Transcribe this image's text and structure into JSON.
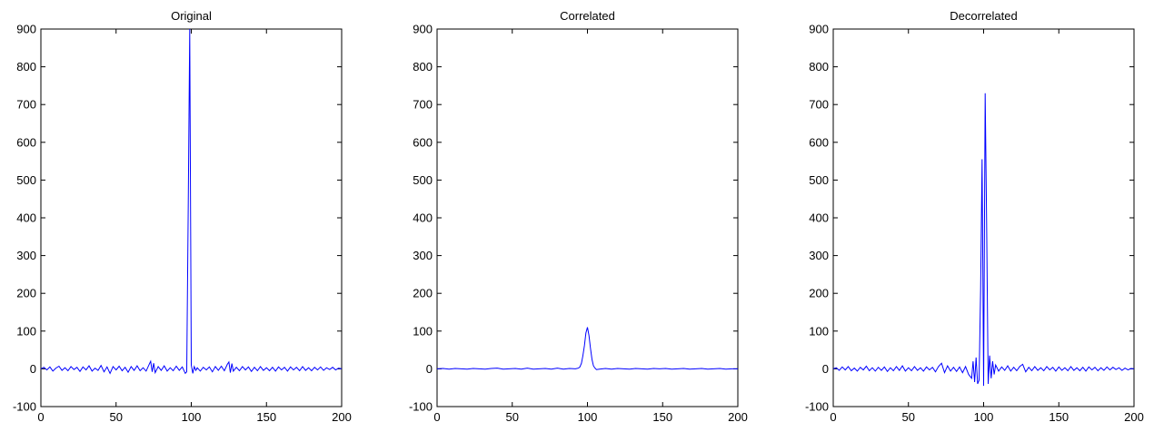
{
  "chart_data": [
    {
      "type": "line",
      "title": "Original",
      "xlim": [
        0,
        200
      ],
      "ylim": [
        -100,
        900
      ],
      "xticks": [
        0,
        50,
        100,
        150,
        200
      ],
      "yticks": [
        -100,
        0,
        100,
        200,
        300,
        400,
        500,
        600,
        700,
        800,
        900
      ],
      "grid": false,
      "color": "#0000ff",
      "series": [
        {
          "x": [
            0,
            2,
            4,
            6,
            8,
            10,
            12,
            14,
            16,
            18,
            20,
            22,
            24,
            26,
            28,
            30,
            32,
            34,
            36,
            38,
            40,
            42,
            44,
            46,
            48,
            50,
            52,
            54,
            56,
            58,
            60,
            62,
            64,
            66,
            68,
            70,
            72,
            73,
            74,
            75,
            76,
            78,
            80,
            82,
            84,
            86,
            88,
            90,
            92,
            94,
            96,
            97,
            98,
            99,
            100,
            101,
            102,
            103,
            104,
            106,
            108,
            110,
            112,
            114,
            116,
            118,
            120,
            122,
            124,
            125,
            126,
            127,
            128,
            130,
            132,
            134,
            136,
            138,
            140,
            142,
            144,
            146,
            148,
            150,
            152,
            154,
            156,
            158,
            160,
            162,
            164,
            166,
            168,
            170,
            172,
            174,
            176,
            178,
            180,
            182,
            184,
            186,
            188,
            190,
            192,
            194,
            196,
            198,
            200
          ],
          "y": [
            0,
            4,
            -3,
            5,
            -6,
            2,
            7,
            -4,
            3,
            -5,
            6,
            -2,
            4,
            -7,
            5,
            -3,
            8,
            -6,
            2,
            -4,
            9,
            -8,
            5,
            -12,
            6,
            -3,
            7,
            -5,
            4,
            -9,
            6,
            -4,
            8,
            -5,
            3,
            -6,
            12,
            20,
            -8,
            15,
            -10,
            6,
            -4,
            8,
            -6,
            3,
            -5,
            7,
            -4,
            5,
            -12,
            -8,
            440,
            900,
            10,
            -12,
            6,
            -4,
            3,
            -6,
            4,
            -3,
            5,
            -8,
            6,
            -4,
            7,
            -5,
            12,
            18,
            -10,
            14,
            -6,
            4,
            -5,
            6,
            -3,
            5,
            -7,
            4,
            -5,
            6,
            -4,
            3,
            -5,
            4,
            -6,
            5,
            -3,
            4,
            -6,
            5,
            -3,
            4,
            -5,
            6,
            -4,
            3,
            -5,
            4,
            -3,
            5,
            -4,
            3,
            -2,
            4,
            -3,
            2,
            0
          ]
        }
      ]
    },
    {
      "type": "line",
      "title": "Correlated",
      "xlim": [
        0,
        200
      ],
      "ylim": [
        -100,
        900
      ],
      "xticks": [
        0,
        50,
        100,
        150,
        200
      ],
      "yticks": [
        -100,
        0,
        100,
        200,
        300,
        400,
        500,
        600,
        700,
        800,
        900
      ],
      "grid": false,
      "color": "#0000ff",
      "series": [
        {
          "x": [
            0,
            4,
            8,
            12,
            16,
            20,
            24,
            28,
            32,
            36,
            40,
            44,
            48,
            52,
            56,
            60,
            64,
            68,
            72,
            76,
            80,
            84,
            88,
            92,
            94,
            95,
            96,
            97,
            98,
            99,
            100,
            101,
            102,
            103,
            104,
            105,
            106,
            108,
            112,
            116,
            120,
            124,
            128,
            132,
            136,
            140,
            144,
            148,
            152,
            156,
            160,
            164,
            168,
            172,
            176,
            180,
            184,
            188,
            192,
            196,
            200
          ],
          "y": [
            0,
            1,
            -1,
            1,
            0,
            -1,
            1,
            0,
            -1,
            1,
            2,
            -1,
            0,
            1,
            -1,
            2,
            -1,
            0,
            1,
            -1,
            2,
            -1,
            1,
            0,
            2,
            5,
            15,
            35,
            62,
            95,
            110,
            88,
            55,
            25,
            8,
            2,
            -2,
            -1,
            1,
            -1,
            1,
            0,
            -1,
            1,
            0,
            -1,
            1,
            0,
            1,
            -1,
            0,
            1,
            -1,
            0,
            1,
            -1,
            0,
            1,
            -1,
            0,
            0
          ]
        }
      ]
    },
    {
      "type": "line",
      "title": "Decorrelated",
      "xlim": [
        0,
        200
      ],
      "ylim": [
        -100,
        900
      ],
      "xticks": [
        0,
        50,
        100,
        150,
        200
      ],
      "yticks": [
        -100,
        0,
        100,
        200,
        300,
        400,
        500,
        600,
        700,
        800,
        900
      ],
      "grid": false,
      "color": "#0000ff",
      "series": [
        {
          "x": [
            0,
            2,
            4,
            6,
            8,
            10,
            12,
            14,
            16,
            18,
            20,
            22,
            24,
            26,
            28,
            30,
            32,
            34,
            36,
            38,
            40,
            42,
            44,
            46,
            48,
            50,
            52,
            54,
            56,
            58,
            60,
            62,
            64,
            66,
            68,
            70,
            72,
            74,
            76,
            78,
            80,
            82,
            84,
            86,
            88,
            90,
            92,
            93,
            94,
            95,
            96,
            97,
            98,
            99,
            100,
            101,
            102,
            103,
            104,
            105,
            106,
            107,
            108,
            110,
            112,
            114,
            116,
            118,
            120,
            122,
            124,
            126,
            128,
            130,
            132,
            134,
            136,
            138,
            140,
            142,
            144,
            146,
            148,
            150,
            152,
            154,
            156,
            158,
            160,
            162,
            164,
            166,
            168,
            170,
            172,
            174,
            176,
            178,
            180,
            182,
            184,
            186,
            188,
            190,
            192,
            194,
            196,
            198,
            200
          ],
          "y": [
            0,
            3,
            -4,
            5,
            -3,
            6,
            -5,
            2,
            -6,
            4,
            -3,
            7,
            -5,
            3,
            -6,
            4,
            -4,
            5,
            -7,
            3,
            -5,
            6,
            -4,
            8,
            -6,
            3,
            -5,
            6,
            -4,
            3,
            -6,
            5,
            -3,
            4,
            -8,
            6,
            15,
            -10,
            8,
            -6,
            4,
            -7,
            5,
            -10,
            6,
            -15,
            -25,
            20,
            -35,
            30,
            -40,
            -30,
            210,
            555,
            -45,
            730,
            385,
            -40,
            35,
            -25,
            20,
            -15,
            10,
            -6,
            5,
            -4,
            8,
            -6,
            4,
            -5,
            6,
            12,
            -8,
            4,
            -5,
            6,
            -4,
            3,
            -5,
            6,
            -3,
            4,
            -6,
            5,
            -4,
            3,
            -5,
            6,
            -4,
            3,
            -5,
            4,
            -6,
            5,
            -3,
            4,
            -5,
            3,
            -4,
            5,
            -3,
            4,
            -2,
            3,
            -4,
            2,
            -3,
            1,
            0
          ]
        }
      ]
    }
  ]
}
